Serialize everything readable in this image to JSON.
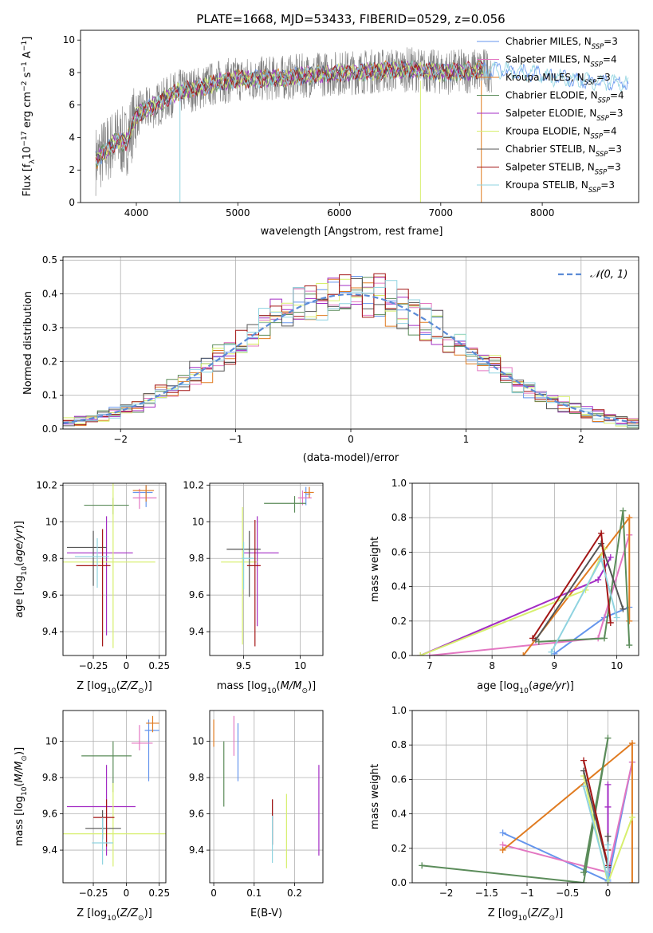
{
  "figure": {
    "title": "PLATE=1668, MJD=53433, FIBERID=0529, z=0.056"
  },
  "models": [
    {
      "name": "Chabrier MILES",
      "nssp": "3",
      "color": "#6495ed"
    },
    {
      "name": "Salpeter MILES",
      "nssp": "4",
      "color": "#e377c2"
    },
    {
      "name": "Kroupa MILES",
      "nssp": "3",
      "color": "#e07b20"
    },
    {
      "name": "Chabrier ELODIE",
      "nssp": "4",
      "color": "#5b8c5a"
    },
    {
      "name": "Salpeter ELODIE",
      "nssp": "3",
      "color": "#a32cc4"
    },
    {
      "name": "Kroupa ELODIE",
      "nssp": "4",
      "color": "#d7ef6e"
    },
    {
      "name": "Chabrier STELIB",
      "nssp": "3",
      "color": "#555555"
    },
    {
      "name": "Salpeter STELIB",
      "nssp": "3",
      "color": "#a31515"
    },
    {
      "name": "Kroupa STELIB",
      "nssp": "3",
      "color": "#8fd3e0"
    }
  ],
  "chart_data": [
    {
      "id": "spectrum",
      "type": "line",
      "xlabel": "wavelength [Angstrom, rest frame]",
      "ylabel": "Flux [f_λ 10^-17 erg cm^-2 s^-1 A^-1]",
      "xlim": [
        3450,
        8950
      ],
      "ylim": [
        0,
        10.6
      ],
      "xticks": [
        4000,
        5000,
        6000,
        7000,
        8000
      ],
      "yticks": [
        0,
        2,
        4,
        6,
        8,
        10
      ],
      "observed_color": "#808080",
      "observed_range": [
        3600,
        7500
      ],
      "model_range": [
        3600,
        8850
      ],
      "continuum": [
        [
          3600,
          2.6
        ],
        [
          3700,
          3.2
        ],
        [
          3800,
          3.8
        ],
        [
          3900,
          3.7
        ],
        [
          4000,
          5.4
        ],
        [
          4200,
          6.0
        ],
        [
          4400,
          6.8
        ],
        [
          4600,
          7.0
        ],
        [
          4800,
          7.4
        ],
        [
          5000,
          7.6
        ],
        [
          5200,
          7.6
        ],
        [
          5500,
          7.7
        ],
        [
          5800,
          7.9
        ],
        [
          6100,
          8.0
        ],
        [
          6400,
          8.1
        ],
        [
          6700,
          8.2
        ],
        [
          7000,
          8.0
        ],
        [
          7300,
          8.1
        ],
        [
          7600,
          8.2
        ],
        [
          8000,
          7.8
        ],
        [
          8400,
          7.5
        ],
        [
          8850,
          7.3
        ]
      ],
      "legend_position": "top-right"
    },
    {
      "id": "residuals",
      "type": "histogram",
      "xlabel": "(data-model)/error",
      "ylabel": "Normed distribution",
      "xlim": [
        -2.5,
        2.5
      ],
      "ylim": [
        0,
        0.51
      ],
      "xticks": [
        -2,
        -1,
        0,
        1,
        2
      ],
      "yticks": [
        0.0,
        0.1,
        0.2,
        0.3,
        0.4,
        0.5
      ],
      "bin_width": 0.1,
      "grid": true,
      "reference_curve": {
        "label": "𝒩(0, 1)",
        "color": "#5b8bd6",
        "style": "dashed",
        "mu": 0,
        "sigma": 1
      },
      "legend_position": "top-right"
    },
    {
      "id": "age_vs_Z",
      "type": "errorbar",
      "xlabel": "Z [log10(Z/Z⊙)]",
      "ylabel": "age [log10(age/yr)]",
      "xlim": [
        -0.48,
        0.3
      ],
      "ylim": [
        9.27,
        10.21
      ],
      "xticks": [
        -0.25,
        0.0,
        0.25
      ],
      "yticks": [
        9.4,
        9.6,
        9.8,
        10.0,
        10.2
      ],
      "grid": true,
      "points": [
        {
          "model": 0,
          "x": 0.15,
          "xerr": [
            0.1,
            0.05
          ],
          "y": 10.16,
          "yerr": [
            0.08,
            0.04
          ]
        },
        {
          "model": 1,
          "x": 0.1,
          "xerr": [
            0.05,
            0.13
          ],
          "y": 10.13,
          "yerr": [
            0.06,
            0.05
          ]
        },
        {
          "model": 2,
          "x": 0.15,
          "xerr": [
            0.1,
            0.06
          ],
          "y": 10.17,
          "yerr": [
            0.06,
            0.03
          ]
        },
        {
          "model": 3,
          "x": -0.1,
          "xerr": [
            0.22,
            0.12
          ],
          "y": 10.09,
          "yerr": [
            0.05,
            0.04
          ]
        },
        {
          "model": 4,
          "x": -0.15,
          "xerr": [
            0.3,
            0.2
          ],
          "y": 9.83,
          "yerr": [
            0.45,
            0.2
          ]
        },
        {
          "model": 5,
          "x": -0.1,
          "xerr": [
            0.38,
            0.32
          ],
          "y": 9.78,
          "yerr": [
            0.47,
            0.43
          ]
        },
        {
          "model": 6,
          "x": -0.25,
          "xerr": [
            0.2,
            0.1
          ],
          "y": 9.86,
          "yerr": [
            0.21,
            0.09
          ]
        },
        {
          "model": 7,
          "x": -0.18,
          "xerr": [
            0.2,
            0.06
          ],
          "y": 9.76,
          "yerr": [
            0.44,
            0.2
          ]
        },
        {
          "model": 8,
          "x": -0.22,
          "xerr": [
            0.17,
            0.09
          ],
          "y": 9.81,
          "yerr": [
            0.17,
            0.1
          ]
        }
      ]
    },
    {
      "id": "age_vs_mass",
      "type": "errorbar",
      "xlabel": "mass [log10(M/M⊙)]",
      "ylabel": "",
      "xlim": [
        9.2,
        10.2
      ],
      "ylim": [
        9.27,
        10.21
      ],
      "xticks": [
        9.5,
        10.0
      ],
      "yticks": [
        9.4,
        9.6,
        9.8,
        10.0,
        10.2
      ],
      "grid": true,
      "points": [
        {
          "model": 0,
          "x": 10.05,
          "xerr": [
            0.0,
            0.04
          ],
          "y": 10.15,
          "yerr": [
            0.06,
            0.04
          ]
        },
        {
          "model": 1,
          "x": 10.02,
          "xerr": [
            0.04,
            0.08
          ],
          "y": 10.13,
          "yerr": [
            0.04,
            0.04
          ]
        },
        {
          "model": 2,
          "x": 10.08,
          "xerr": [
            0.05,
            0.04
          ],
          "y": 10.16,
          "yerr": [
            0.03,
            0.03
          ]
        },
        {
          "model": 3,
          "x": 9.95,
          "xerr": [
            0.27,
            0.1
          ],
          "y": 10.1,
          "yerr": [
            0.05,
            0.04
          ]
        },
        {
          "model": 4,
          "x": 9.62,
          "xerr": [
            0.12,
            0.19
          ],
          "y": 9.83,
          "yerr": [
            0.4,
            0.2
          ]
        },
        {
          "model": 5,
          "x": 9.49,
          "xerr": [
            0.19,
            0.13
          ],
          "y": 9.78,
          "yerr": [
            0.45,
            0.3
          ]
        },
        {
          "model": 6,
          "x": 9.55,
          "xerr": [
            0.2,
            0.1
          ],
          "y": 9.85,
          "yerr": [
            0.26,
            0.1
          ]
        },
        {
          "model": 7,
          "x": 9.6,
          "xerr": [
            0.07,
            0.05
          ],
          "y": 9.76,
          "yerr": [
            0.44,
            0.25
          ]
        },
        {
          "model": 8,
          "x": 9.5,
          "xerr": [
            0.02,
            0.09
          ],
          "y": 9.8,
          "yerr": [
            0.17,
            0.09
          ]
        }
      ]
    },
    {
      "id": "weight_vs_age",
      "type": "line",
      "xlabel": "age [log10(age/yr)]",
      "ylabel": "mass weight",
      "xlim": [
        6.72,
        10.35
      ],
      "ylim": [
        0.0,
        1.0
      ],
      "xticks": [
        7,
        8,
        9,
        10
      ],
      "yticks": [
        0.0,
        0.2,
        0.4,
        0.6,
        0.8,
        1.0
      ],
      "grid": true,
      "series": [
        {
          "model": 0,
          "x": [
            9.0,
            9.8,
            10.2
          ],
          "y": [
            0.01,
            0.22,
            0.28
          ]
        },
        {
          "model": 1,
          "x": [
            7.0,
            9.7,
            10.2
          ],
          "y": [
            0.0,
            0.1,
            0.7
          ]
        },
        {
          "model": 2,
          "x": [
            8.5,
            10.2,
            10.2
          ],
          "y": [
            0.0,
            0.8,
            0.2
          ]
        },
        {
          "model": 3,
          "x": [
            8.75,
            9.8,
            10.1,
            10.2
          ],
          "y": [
            0.08,
            0.1,
            0.84,
            0.06
          ]
        },
        {
          "model": 4,
          "x": [
            6.85,
            9.7,
            9.9
          ],
          "y": [
            0.0,
            0.44,
            0.57
          ]
        },
        {
          "model": 5,
          "x": [
            6.85,
            9.5,
            9.8
          ],
          "y": [
            0.0,
            0.38,
            0.62
          ]
        },
        {
          "model": 6,
          "x": [
            8.7,
            9.75,
            10.1
          ],
          "y": [
            0.09,
            0.65,
            0.27
          ]
        },
        {
          "model": 7,
          "x": [
            8.65,
            9.75,
            9.9
          ],
          "y": [
            0.1,
            0.71,
            0.19
          ]
        },
        {
          "model": 8,
          "x": [
            8.95,
            9.75,
            10.0
          ],
          "y": [
            0.02,
            0.56,
            0.22
          ]
        }
      ]
    },
    {
      "id": "mass_vs_Z",
      "type": "errorbar",
      "xlabel": "Z [log10(Z/Z⊙)]",
      "ylabel": "mass [log10(M/M⊙)]",
      "xlim": [
        -0.48,
        0.3
      ],
      "ylim": [
        9.22,
        10.17
      ],
      "xticks": [
        -0.25,
        0.0,
        0.25
      ],
      "yticks": [
        9.4,
        9.6,
        9.8,
        10.0
      ],
      "grid": true,
      "points": [
        {
          "model": 0,
          "x": 0.17,
          "xerr": [
            0.03,
            0.08
          ],
          "y": 10.06,
          "yerr": [
            0.28,
            0.06
          ]
        },
        {
          "model": 1,
          "x": 0.1,
          "xerr": [
            0.06,
            0.1
          ],
          "y": 9.99,
          "yerr": [
            0.04,
            0.1
          ]
        },
        {
          "model": 2,
          "x": 0.2,
          "xerr": [
            0.05,
            0.05
          ],
          "y": 10.1,
          "yerr": [
            0.05,
            0.04
          ]
        },
        {
          "model": 3,
          "x": -0.1,
          "xerr": [
            0.24,
            0.14
          ],
          "y": 9.92,
          "yerr": [
            0.2,
            0.08
          ]
        },
        {
          "model": 4,
          "x": -0.15,
          "xerr": [
            0.3,
            0.22
          ],
          "y": 9.64,
          "yerr": [
            0.27,
            0.23
          ]
        },
        {
          "model": 5,
          "x": -0.1,
          "xerr": [
            0.38,
            0.4
          ],
          "y": 9.49,
          "yerr": [
            0.18,
            0.28
          ]
        },
        {
          "model": 6,
          "x": -0.18,
          "xerr": [
            0.13,
            0.14
          ],
          "y": 9.52,
          "yerr": [
            0.06,
            0.1
          ]
        },
        {
          "model": 7,
          "x": -0.15,
          "xerr": [
            0.1,
            0.06
          ],
          "y": 9.58,
          "yerr": [
            0.16,
            0.1
          ]
        },
        {
          "model": 8,
          "x": -0.18,
          "xerr": [
            0.08,
            0.08
          ],
          "y": 9.44,
          "yerr": [
            0.12,
            0.14
          ]
        }
      ]
    },
    {
      "id": "mass_vs_ebv",
      "type": "errorbar",
      "xlabel": "E(B-V)",
      "ylabel": "",
      "xlim": [
        -0.01,
        0.27
      ],
      "ylim": [
        9.22,
        10.17
      ],
      "xticks": [
        0.0,
        0.1,
        0.2
      ],
      "yticks": [
        9.4,
        9.6,
        9.8,
        10.0
      ],
      "grid": true,
      "points": [
        {
          "model": 0,
          "x": 0.06,
          "y": 9.94,
          "yerr": [
            0.16,
            0.16
          ]
        },
        {
          "model": 1,
          "x": 0.05,
          "y": 10.02,
          "yerr": [
            0.1,
            0.12
          ]
        },
        {
          "model": 2,
          "x": 0.0,
          "y": 10.05,
          "yerr": [
            0.08,
            0.07
          ]
        },
        {
          "model": 3,
          "x": 0.025,
          "y": 9.82,
          "yerr": [
            0.18,
            0.18
          ]
        },
        {
          "model": 4,
          "x": 0.26,
          "y": 9.63,
          "yerr": [
            0.26,
            0.24
          ]
        },
        {
          "model": 5,
          "x": 0.18,
          "y": 9.5,
          "yerr": [
            0.2,
            0.21
          ]
        },
        {
          "model": 6,
          "x": 0.145,
          "y": 9.55,
          "yerr": [
            0.12,
            0.13
          ]
        },
        {
          "model": 7,
          "x": 0.145,
          "y": 9.56,
          "yerr": [
            0.13,
            0.12
          ]
        },
        {
          "model": 8,
          "x": 0.145,
          "y": 9.46,
          "yerr": [
            0.13,
            0.13
          ]
        }
      ]
    },
    {
      "id": "weight_vs_Z",
      "type": "line",
      "xlabel": "Z [log10(Z/Z⊙)]",
      "ylabel": "mass weight",
      "xlim": [
        -2.42,
        0.38
      ],
      "ylim": [
        0.0,
        1.0
      ],
      "xticks": [
        -2.0,
        -1.5,
        -1.0,
        -0.5,
        0.0
      ],
      "yticks": [
        0.0,
        0.2,
        0.4,
        0.6,
        0.8,
        1.0
      ],
      "grid": true,
      "series": [
        {
          "model": 0,
          "x": [
            -1.3,
            0.0,
            0.3
          ],
          "y": [
            0.29,
            0.01,
            0.7
          ]
        },
        {
          "model": 1,
          "x": [
            -1.3,
            0.0,
            0.3
          ],
          "y": [
            0.22,
            0.06,
            0.7
          ]
        },
        {
          "model": 2,
          "x": [
            -1.3,
            0.3,
            0.3
          ],
          "y": [
            0.19,
            0.81,
            0.0
          ]
        },
        {
          "model": 3,
          "x": [
            -2.3,
            -0.3,
            0.0,
            -0.3
          ],
          "y": [
            0.1,
            0.0,
            0.84,
            0.06
          ]
        },
        {
          "model": 4,
          "x": [
            0.0,
            0.0,
            0.0
          ],
          "y": [
            0.0,
            0.44,
            0.57
          ]
        },
        {
          "model": 5,
          "x": [
            -0.3,
            0.0,
            0.3
          ],
          "y": [
            0.62,
            0.0,
            0.38
          ]
        },
        {
          "model": 6,
          "x": [
            -0.3,
            0.0,
            0.0
          ],
          "y": [
            0.65,
            0.09,
            0.27
          ]
        },
        {
          "model": 7,
          "x": [
            -0.3,
            0.0,
            0.0
          ],
          "y": [
            0.71,
            0.1,
            0.19
          ]
        },
        {
          "model": 8,
          "x": [
            -0.3,
            0.0,
            0.0
          ],
          "y": [
            0.56,
            0.02,
            0.22
          ]
        }
      ]
    }
  ]
}
